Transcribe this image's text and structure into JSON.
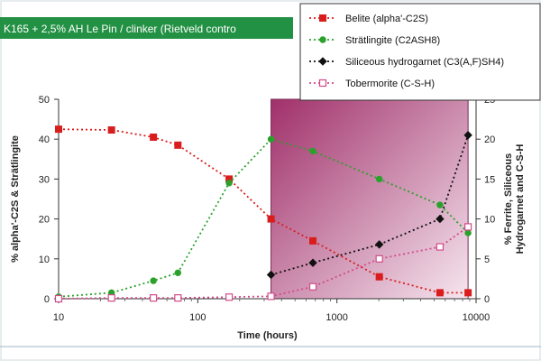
{
  "title": "K165 + 2,5% AH Le Pin / clinker (Rietveld contro",
  "colors": {
    "title_bar": "#239144",
    "belite": "#d91c1c",
    "stratlingite": "#2aa12a",
    "hydrogarnet": "#111111",
    "tobermorite": "#d24a8a",
    "shade_dark": "#a0306a",
    "shade_light": "#f6e6ef"
  },
  "chart_data": {
    "type": "scatter",
    "xscale": "log",
    "xlim": [
      10,
      10000
    ],
    "ylim_left": [
      0,
      50
    ],
    "ylim_right": [
      0,
      25
    ],
    "xlabel": "Time (hours)",
    "ylabel_left": "% alpha'-C2S & Strätlingite",
    "ylabel_right": "% Ferrite, Siliceous Hydrogarnet and C-S-H",
    "x_ticks": [
      "10",
      "100",
      "1000",
      "10000"
    ],
    "y_left_ticks": [
      "0",
      "10",
      "20",
      "30",
      "40",
      "50"
    ],
    "y_right_ticks": [
      "0",
      "5",
      "10",
      "15",
      "20",
      "25"
    ],
    "shaded_region_x": [
      336,
      8760
    ],
    "grid": false,
    "legend_position": "top-right",
    "series": [
      {
        "name": "Belite (alpha'-C2S)",
        "axis": "left",
        "marker": "square",
        "color": "#d91c1c",
        "x": [
          10,
          24,
          48,
          72,
          168,
          336,
          672,
          2016,
          5500,
          8760
        ],
        "y": [
          42.5,
          42.3,
          40.5,
          38.5,
          30,
          20,
          14.5,
          5.5,
          1.5,
          1.5
        ]
      },
      {
        "name": "Strätlingite (C2ASH8)",
        "axis": "left",
        "marker": "circle",
        "color": "#2aa12a",
        "x": [
          10,
          24,
          48,
          72,
          168,
          336,
          672,
          2016,
          5500,
          8760
        ],
        "y": [
          0.5,
          1.5,
          4.5,
          6.5,
          29,
          40,
          37,
          30,
          23.5,
          16.5
        ]
      },
      {
        "name": "Siliceous hydrogarnet (C3(A,F)SH4)",
        "axis": "right",
        "marker": "diamond",
        "color": "#111111",
        "x": [
          336,
          672,
          2016,
          5500,
          8760
        ],
        "y": [
          3,
          4.5,
          6.8,
          10,
          20.5
        ]
      },
      {
        "name": "Tobermorite (C-S-H)",
        "axis": "right",
        "marker": "open-square",
        "color": "#d24a8a",
        "x": [
          10,
          24,
          48,
          72,
          168,
          336,
          672,
          2016,
          5500,
          8760
        ],
        "y": [
          0,
          0.1,
          0.1,
          0.1,
          0.2,
          0.3,
          1.5,
          5,
          6.5,
          9
        ]
      }
    ]
  }
}
